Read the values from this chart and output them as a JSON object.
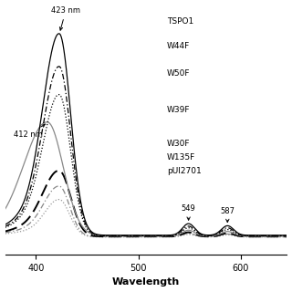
{
  "xlabel": "Wavelength",
  "xlabel_fontsize": 8,
  "xlabel_fontweight": "bold",
  "xlim": [
    370,
    645
  ],
  "ylim": [
    -0.08,
    1.1
  ],
  "xticks": [
    400,
    500,
    600
  ],
  "xtick_labels": [
    "400",
    "500",
    "600"
  ],
  "background_color": "#ffffff",
  "figsize": [
    3.2,
    3.2
  ],
  "dpi": 100
}
